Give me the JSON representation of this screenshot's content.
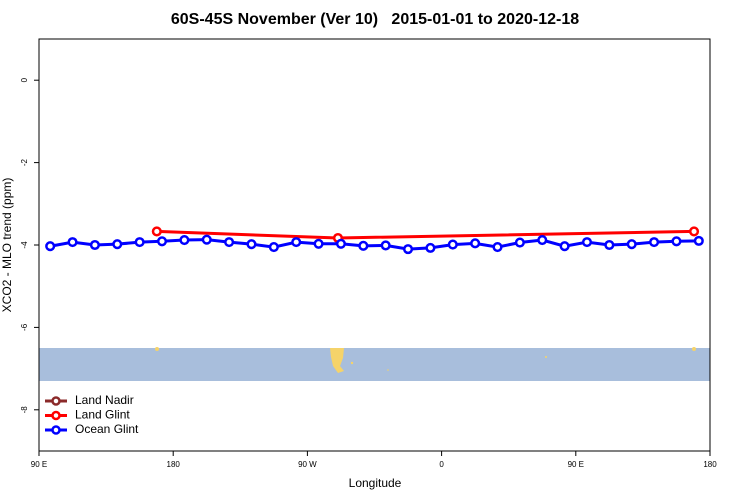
{
  "chart_data": {
    "type": "line",
    "title": "60S-45S November (Ver 10)   2015-01-01 to 2020-12-18",
    "x_label": "Longitude",
    "y_label": "XCO2 - MLO trend (ppm)",
    "xlim": [
      90,
      540
    ],
    "ylim": [
      -9,
      1
    ],
    "xticks": [
      {
        "value": 90,
        "label": "90 E"
      },
      {
        "value": 180,
        "label": "180"
      },
      {
        "value": 270,
        "label": "90 W"
      },
      {
        "value": 360,
        "label": "0"
      },
      {
        "value": 450,
        "label": "90 E"
      },
      {
        "value": 540,
        "label": "180"
      }
    ],
    "yticks": [
      0,
      -2,
      -4,
      -6,
      -8
    ],
    "legend": "bottom-left",
    "series": [
      {
        "name": "Land Nadir",
        "color": "#8b2a2a",
        "x": [],
        "values": []
      },
      {
        "name": "Land Glint",
        "color": "#ff0000",
        "x": [
          169,
          290.5,
          529.3
        ],
        "values": [
          -3.67,
          -3.83,
          -3.67
        ]
      },
      {
        "name": "Ocean Glint",
        "color": "#0000ff",
        "x": [
          97.5,
          112.5,
          127.5,
          142.5,
          157.5,
          172.5,
          187.5,
          202.5,
          217.5,
          232.5,
          247.5,
          262.5,
          277.5,
          292.5,
          307.5,
          322.5,
          337.5,
          352.5,
          367.5,
          382.5,
          397.5,
          412.5,
          427.5,
          442.5,
          457.5,
          472.5,
          487.5,
          502.5,
          517.5,
          532.5
        ],
        "values": [
          -4.03,
          -3.93,
          -4.0,
          -3.98,
          -3.93,
          -3.91,
          -3.88,
          -3.87,
          -3.93,
          -3.98,
          -4.05,
          -3.93,
          -3.97,
          -3.97,
          -4.02,
          -4.01,
          -4.1,
          -4.07,
          -3.99,
          -3.96,
          -4.05,
          -3.94,
          -3.88,
          -4.03,
          -3.93,
          -4.0,
          -3.98,
          -3.93,
          -3.91,
          -3.9
        ]
      }
    ]
  }
}
